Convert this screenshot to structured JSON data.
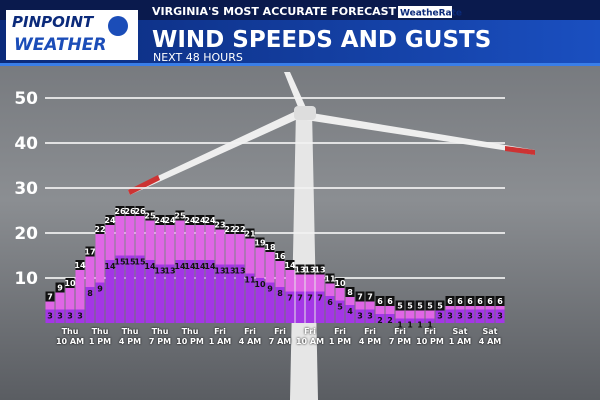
{
  "logo": {
    "line1": "PINPOINT",
    "line2": "WEATHER"
  },
  "tagline": "VIRGINIA'S MOST ACCURATE FORECAST",
  "partner": "WeatheRate",
  "chart_data": {
    "type": "bar",
    "title": "WIND SPEEDS AND GUSTS",
    "subtitle": "NEXT 48 HOURS",
    "categories": [
      null,
      null,
      "Thu\n10 AM",
      null,
      null,
      "Thu\n1 PM",
      null,
      null,
      "Thu\n4 PM",
      null,
      null,
      "Thu\n7 PM",
      null,
      null,
      "Thu\n10 PM",
      null,
      null,
      "Fri\n1 AM",
      null,
      null,
      "Fri\n4 AM",
      null,
      null,
      "Fri\n7 AM",
      null,
      null,
      "Fri\n10 AM",
      null,
      null,
      "Fri\n1 PM",
      null,
      null,
      "Fri\n4 PM",
      null,
      null,
      "Fri\n7 PM",
      null,
      null,
      "Fri\n10 PM",
      null,
      null,
      "Sat\n1 AM",
      null,
      null,
      "Sat\n4 AM",
      null
    ],
    "series": [
      {
        "color": "#e066e6",
        "values": [
          7,
          9,
          10,
          14,
          17,
          22,
          24,
          26,
          26,
          26,
          25,
          24,
          24,
          25,
          24,
          24,
          24,
          23,
          22,
          22,
          21,
          19,
          18,
          16,
          14,
          13,
          13,
          13,
          11,
          10,
          8,
          7,
          7,
          6,
          6,
          5,
          5,
          5,
          5,
          5,
          6,
          6,
          6,
          6,
          6,
          6
        ]
      },
      {
        "color": "#a436e6",
        "values": [
          3,
          3,
          3,
          3,
          8,
          9,
          14,
          15,
          15,
          15,
          14,
          13,
          13,
          14,
          14,
          14,
          14,
          13,
          13,
          13,
          11,
          10,
          9,
          8,
          7,
          7,
          7,
          7,
          6,
          5,
          4,
          3,
          3,
          2,
          2,
          1,
          1,
          1,
          1,
          3,
          3,
          3,
          3,
          3,
          3,
          3
        ]
      }
    ],
    "ylim": [
      0,
      50
    ],
    "yticks": [
      10,
      20,
      30,
      40,
      50
    ],
    "grid": true
  }
}
